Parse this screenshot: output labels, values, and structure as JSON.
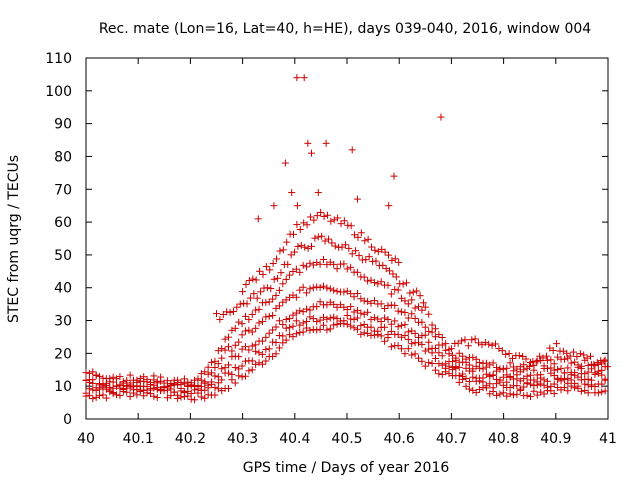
{
  "chart_data": {
    "type": "scatter",
    "title": "Rec. mate (Lon=16, Lat=40, h=HE), days 039-040, 2016, window 004",
    "xlabel": "GPS time / Days of year 2016",
    "ylabel": "STEC from uqrg / TECUs",
    "xlim": [
      40,
      41
    ],
    "ylim": [
      0,
      110
    ],
    "x_ticks": [
      40,
      40.1,
      40.2,
      40.3,
      40.4,
      40.5,
      40.6,
      40.7,
      40.8,
      40.9,
      41
    ],
    "x_tick_labels": [
      "40",
      "40.1",
      "40.2",
      "40.3",
      "40.4",
      "40.5",
      "40.6",
      "40.7",
      "40.8",
      "40.9",
      "41"
    ],
    "y_ticks": [
      0,
      10,
      20,
      30,
      40,
      50,
      60,
      70,
      80,
      90,
      100,
      110
    ],
    "y_tick_labels": [
      "0",
      "10",
      "20",
      "30",
      "40",
      "50",
      "60",
      "70",
      "80",
      "90",
      "100",
      "110"
    ],
    "marker": "plus",
    "color": "#cc0000",
    "series_tracks": [
      {
        "name": "track-1",
        "x": [
          40.0,
          40.05,
          40.1,
          40.15,
          40.2,
          40.23,
          40.26,
          40.3,
          40.35,
          40.4,
          40.45,
          40.5,
          40.55,
          40.6,
          40.65,
          40.7,
          40.75,
          40.8,
          40.85,
          40.9,
          40.95,
          41.0
        ],
        "y": [
          7,
          7.5,
          8,
          7.5,
          6.5,
          7,
          9,
          13,
          19,
          26,
          28,
          28,
          26,
          22,
          17,
          13,
          9,
          8,
          8,
          9,
          9,
          9
        ]
      },
      {
        "name": "track-2",
        "x": [
          40.0,
          40.05,
          40.1,
          40.15,
          40.2,
          40.23,
          40.26,
          40.3,
          40.35,
          40.4,
          40.45,
          40.5,
          40.55,
          40.6,
          40.65,
          40.7,
          40.75,
          40.8,
          40.85,
          40.9,
          40.95,
          41.0
        ],
        "y": [
          9,
          9,
          9,
          8.5,
          8,
          9,
          12,
          17,
          22,
          29,
          31,
          31,
          28,
          26,
          21,
          15,
          11,
          10,
          10,
          11,
          11,
          11
        ]
      },
      {
        "name": "track-3",
        "x": [
          40.0,
          40.05,
          40.1,
          40.15,
          40.2,
          40.23,
          40.26,
          40.3,
          40.35,
          40.4,
          40.45,
          40.5,
          40.55,
          40.6,
          40.65,
          40.7,
          40.75,
          40.8,
          40.85,
          40.9,
          40.95,
          41.0
        ],
        "y": [
          11,
          10,
          10,
          10,
          9,
          10,
          15,
          21,
          26,
          33,
          35,
          34,
          31,
          29,
          25,
          16,
          13,
          12,
          12,
          13,
          13,
          13
        ]
      },
      {
        "name": "track-4",
        "x": [
          40.0,
          40.05,
          40.1,
          40.15,
          40.2,
          40.23,
          40.26,
          40.3,
          40.35,
          40.4,
          40.45,
          40.5,
          40.55,
          40.6,
          40.65,
          40.7,
          40.75,
          40.8,
          40.85,
          40.9,
          40.95,
          41.0
        ],
        "y": [
          13,
          11,
          11,
          11,
          10,
          12,
          19,
          25,
          31,
          38,
          41,
          39,
          36,
          33,
          29,
          18,
          15,
          14,
          14,
          15,
          15,
          15
        ]
      },
      {
        "name": "track-5",
        "x": [
          40.0,
          40.05,
          40.1,
          40.15,
          40.2,
          40.23,
          40.26,
          40.3,
          40.35,
          40.4,
          40.45,
          40.5,
          40.55,
          40.6,
          40.65,
          40.7,
          40.75,
          40.8,
          40.85,
          40.9,
          40.95,
          41.0
        ],
        "y": [
          14,
          13,
          12,
          12,
          11,
          14,
          22,
          30,
          36,
          45,
          48,
          46,
          42,
          38,
          33,
          20,
          18,
          16,
          16,
          18,
          17,
          17
        ]
      },
      {
        "name": "track-6",
        "x": [
          40.25,
          40.3,
          40.35,
          40.4,
          40.45,
          40.5,
          40.55,
          40.6,
          40.65
        ],
        "y": [
          31,
          35,
          40,
          51,
          55,
          52,
          48,
          42,
          36
        ]
      },
      {
        "name": "track-7",
        "x": [
          40.3,
          40.35,
          40.4,
          40.45,
          40.5,
          40.55,
          40.6
        ],
        "y": [
          40,
          46,
          58,
          62,
          59,
          53,
          47
        ]
      },
      {
        "name": "track-8",
        "x": [
          40.7,
          40.75,
          40.8,
          40.85,
          40.9,
          40.95,
          41.0
        ],
        "y": [
          22,
          24,
          21,
          17,
          22,
          19,
          16
        ]
      }
    ],
    "outliers": {
      "x": [
        40.404,
        40.418,
        40.425,
        40.432,
        40.46,
        40.51,
        40.382,
        40.394,
        40.59,
        40.68,
        40.445,
        40.33,
        40.36,
        40.52,
        40.405,
        40.58
      ],
      "y": [
        104,
        104,
        84,
        81,
        84,
        82,
        78,
        69,
        74,
        92,
        69,
        61,
        65,
        67,
        65,
        65
      ]
    }
  }
}
